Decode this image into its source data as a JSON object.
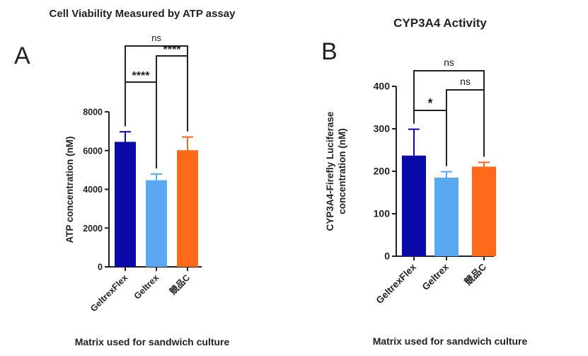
{
  "chart_data": [
    {
      "type": "bar",
      "panel_letter": "A",
      "title": "Cell Viability Measured by ATP assay",
      "xlabel": "Matrix used for sandwich culture",
      "ylabel": "ATP concentration (nM)",
      "categories": [
        "GeltrexFlex",
        "Geltrex",
        "競品C"
      ],
      "values": [
        6450,
        4470,
        6020
      ],
      "errors": [
        520,
        320,
        680
      ],
      "colors": [
        "#0a0aa8",
        "#5aa8f0",
        "#ff6a1a"
      ],
      "ylim": [
        0,
        8000
      ],
      "yticks": [
        0,
        2000,
        4000,
        6000,
        8000
      ],
      "significance": [
        {
          "from": 0,
          "to": 1,
          "label": "****"
        },
        {
          "from": 1,
          "to": 2,
          "label": "****"
        },
        {
          "from": 0,
          "to": 2,
          "label": "ns"
        }
      ]
    },
    {
      "type": "bar",
      "panel_letter": "B",
      "title": "CYP3A4 Activity",
      "xlabel": "Matrix used for sandwich culture",
      "ylabel_line1": "CYP3A4-Firefly Luciferase",
      "ylabel_line2": "concentration (nM)",
      "categories": [
        "GeltrexFlex",
        "Geltrex",
        "競品C"
      ],
      "values": [
        237,
        185,
        211
      ],
      "errors": [
        62,
        14,
        10
      ],
      "colors": [
        "#0a0aa8",
        "#5aa8f0",
        "#ff6a1a"
      ],
      "ylim": [
        0,
        400
      ],
      "yticks": [
        0,
        100,
        200,
        300,
        400
      ],
      "significance": [
        {
          "from": 0,
          "to": 1,
          "label": "*"
        },
        {
          "from": 1,
          "to": 2,
          "label": "ns"
        },
        {
          "from": 0,
          "to": 2,
          "label": "ns"
        }
      ]
    }
  ]
}
